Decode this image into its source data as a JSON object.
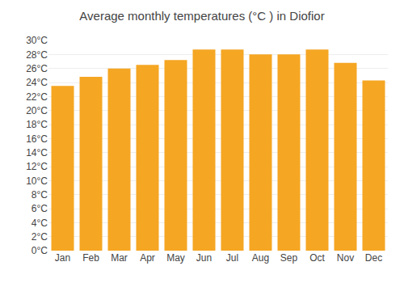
{
  "chart_data": {
    "type": "bar",
    "title": "Average monthly temperatures (°C ) in Diofior",
    "categories": [
      "Jan",
      "Feb",
      "Mar",
      "Apr",
      "May",
      "Jun",
      "Jul",
      "Aug",
      "Sep",
      "Oct",
      "Nov",
      "Dec"
    ],
    "values": [
      23.5,
      24.8,
      26.0,
      26.5,
      27.2,
      28.7,
      28.7,
      28.0,
      28.0,
      28.7,
      26.8,
      24.3
    ],
    "color": "#F5A623",
    "ylim": [
      0,
      30
    ],
    "yticks": [
      {
        "value": 0,
        "label": "0°C"
      },
      {
        "value": 2,
        "label": "2°C"
      },
      {
        "value": 4,
        "label": "4°C"
      },
      {
        "value": 6,
        "label": "6°C"
      },
      {
        "value": 8,
        "label": "8°C"
      },
      {
        "value": 10,
        "label": "10°C"
      },
      {
        "value": 12,
        "label": "12°C"
      },
      {
        "value": 14,
        "label": "14°C"
      },
      {
        "value": 16,
        "label": "16°C"
      },
      {
        "value": 18,
        "label": "18°C"
      },
      {
        "value": 20,
        "label": "20°C"
      },
      {
        "value": 22,
        "label": "22°C"
      },
      {
        "value": 24,
        "label": "24°C"
      },
      {
        "value": 26,
        "label": "26°C"
      },
      {
        "value": 28,
        "label": "28°C"
      },
      {
        "value": 30,
        "label": "30°C"
      }
    ],
    "grid": true
  }
}
